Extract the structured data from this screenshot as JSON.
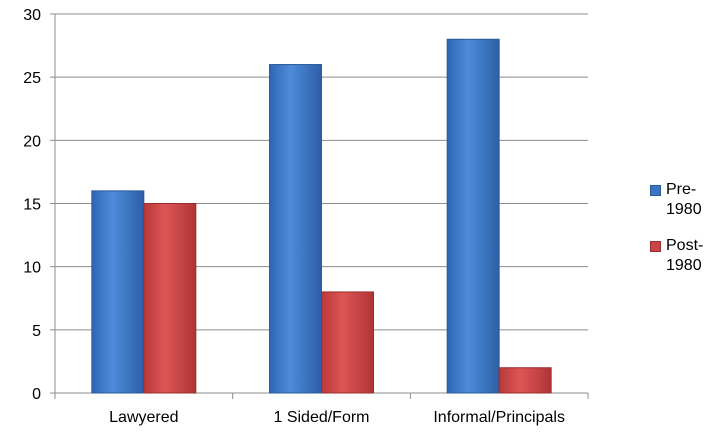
{
  "chart_data": {
    "type": "bar",
    "categories": [
      "Lawyered",
      "1 Sided/Form",
      "Informal/Principals"
    ],
    "series": [
      {
        "name": "Pre-1980",
        "legend_lines": [
          "Pre-",
          "1980"
        ],
        "values": [
          16,
          26,
          28
        ],
        "color": "#3A75C4",
        "stroke": "#2A5B9A"
      },
      {
        "name": "Post-1980",
        "legend_lines": [
          "Post-",
          "1980"
        ],
        "values": [
          15,
          8,
          2
        ],
        "color": "#C94444",
        "stroke": "#9A2E2E"
      }
    ],
    "y_ticks": [
      "0",
      "5",
      "10",
      "15",
      "20",
      "25",
      "30"
    ],
    "ylim": [
      0,
      30
    ],
    "grid": true,
    "legend_position": "right",
    "title": "",
    "xlabel": "",
    "ylabel": ""
  }
}
